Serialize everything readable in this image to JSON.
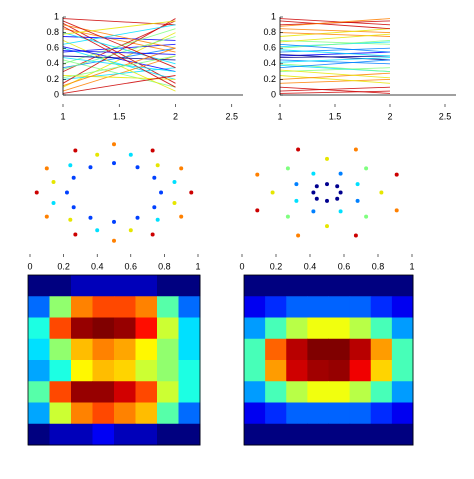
{
  "chart_data": [
    {
      "type": "line",
      "x": [
        1,
        2
      ],
      "xlim": [
        1,
        2.6
      ],
      "ylim": [
        0,
        1
      ],
      "xticks": [
        1,
        1.5,
        2,
        2.5
      ],
      "yticks": [
        0,
        0.2,
        0.4,
        0.6,
        0.8,
        1
      ],
      "series": [
        {
          "color": "#cc0000",
          "values": [
            0.92,
            0.15
          ]
        },
        {
          "color": "#ff8000",
          "values": [
            0.85,
            0.55
          ]
        },
        {
          "color": "#e6e600",
          "values": [
            0.1,
            0.8
          ]
        },
        {
          "color": "#cc0000",
          "values": [
            0.3,
            0.95
          ]
        },
        {
          "color": "#00e0ff",
          "values": [
            0.6,
            0.2
          ]
        },
        {
          "color": "#ff8000",
          "values": [
            0.05,
            0.5
          ]
        },
        {
          "color": "#0000ff",
          "values": [
            0.75,
            0.7
          ]
        },
        {
          "color": "#7fff7f",
          "values": [
            0.45,
            0.1
          ]
        },
        {
          "color": "#00e0ff",
          "values": [
            0.2,
            0.35
          ]
        },
        {
          "color": "#cc0000",
          "values": [
            0.98,
            0.9
          ]
        },
        {
          "color": "#0000ff",
          "values": [
            0.55,
            0.65
          ]
        },
        {
          "color": "#0080ff",
          "values": [
            0.35,
            0.6
          ]
        },
        {
          "color": "#e6e600",
          "values": [
            0.7,
            0.05
          ]
        },
        {
          "color": "#cc0000",
          "values": [
            0.15,
            0.98
          ]
        },
        {
          "color": "#00e0ff",
          "values": [
            0.8,
            0.4
          ]
        },
        {
          "color": "#7fff7f",
          "values": [
            0.4,
            0.85
          ]
        },
        {
          "color": "#0000ff",
          "values": [
            0.62,
            0.3
          ]
        },
        {
          "color": "#e6e600",
          "values": [
            0.25,
            0.2
          ]
        },
        {
          "color": "#ff8000",
          "values": [
            0.9,
            0.6
          ]
        },
        {
          "color": "#00008f",
          "values": [
            0.5,
            0.45
          ]
        },
        {
          "color": "#cc0000",
          "values": [
            0.02,
            0.25
          ]
        },
        {
          "color": "#00e0ff",
          "values": [
            0.65,
            0.9
          ]
        },
        {
          "color": "#7fff7f",
          "values": [
            0.33,
            0.75
          ]
        },
        {
          "color": "#cc0000",
          "values": [
            0.88,
            0.1
          ]
        },
        {
          "color": "#ff8000",
          "values": [
            0.12,
            0.6
          ]
        },
        {
          "color": "#0000ff",
          "values": [
            0.57,
            0.52
          ]
        },
        {
          "color": "#00e0ff",
          "values": [
            0.48,
            0.3
          ]
        },
        {
          "color": "#e6e600",
          "values": [
            0.78,
            0.95
          ]
        },
        {
          "color": "#7fff7f",
          "values": [
            0.22,
            0.5
          ]
        },
        {
          "color": "#cc0000",
          "values": [
            0.95,
            0.35
          ]
        }
      ]
    },
    {
      "type": "line",
      "x": [
        1,
        2
      ],
      "xlim": [
        1,
        2.6
      ],
      "ylim": [
        0,
        1
      ],
      "xticks": [
        1,
        1.5,
        2,
        2.5
      ],
      "yticks": [
        0,
        0.2,
        0.4,
        0.6,
        0.8,
        1
      ],
      "series": [
        {
          "color": "#cc0000",
          "values": [
            0.9,
            0.95
          ]
        },
        {
          "color": "#cc0000",
          "values": [
            0.05,
            0.1
          ]
        },
        {
          "color": "#ff8000",
          "values": [
            0.85,
            0.8
          ]
        },
        {
          "color": "#ff8000",
          "values": [
            0.15,
            0.2
          ]
        },
        {
          "color": "#e6e600",
          "values": [
            0.75,
            0.85
          ]
        },
        {
          "color": "#e6e600",
          "values": [
            0.25,
            0.15
          ]
        },
        {
          "color": "#7fff7f",
          "values": [
            0.7,
            0.65
          ]
        },
        {
          "color": "#7fff7f",
          "values": [
            0.3,
            0.35
          ]
        },
        {
          "color": "#00e0ff",
          "values": [
            0.62,
            0.68
          ]
        },
        {
          "color": "#00e0ff",
          "values": [
            0.38,
            0.3
          ]
        },
        {
          "color": "#0080ff",
          "values": [
            0.55,
            0.6
          ]
        },
        {
          "color": "#0080ff",
          "values": [
            0.45,
            0.4
          ]
        },
        {
          "color": "#0000ff",
          "values": [
            0.5,
            0.55
          ]
        },
        {
          "color": "#00008f",
          "values": [
            0.52,
            0.45
          ]
        },
        {
          "color": "#00008f",
          "values": [
            0.48,
            0.5
          ]
        },
        {
          "color": "#cc0000",
          "values": [
            0.95,
            0.85
          ]
        },
        {
          "color": "#cc0000",
          "values": [
            0.02,
            0.05
          ]
        },
        {
          "color": "#ff8000",
          "values": [
            0.8,
            0.75
          ]
        },
        {
          "color": "#ff8000",
          "values": [
            0.2,
            0.28
          ]
        },
        {
          "color": "#e6e600",
          "values": [
            0.68,
            0.78
          ]
        },
        {
          "color": "#e6e600",
          "values": [
            0.32,
            0.22
          ]
        },
        {
          "color": "#7fff7f",
          "values": [
            0.6,
            0.7
          ]
        },
        {
          "color": "#7fff7f",
          "values": [
            0.4,
            0.3
          ]
        },
        {
          "color": "#00e0ff",
          "values": [
            0.58,
            0.5
          ]
        },
        {
          "color": "#00e0ff",
          "values": [
            0.42,
            0.48
          ]
        },
        {
          "color": "#0080ff",
          "values": [
            0.65,
            0.55
          ]
        },
        {
          "color": "#0080ff",
          "values": [
            0.35,
            0.45
          ]
        },
        {
          "color": "#cc0000",
          "values": [
            0.98,
            0.9
          ]
        },
        {
          "color": "#cc0000",
          "values": [
            0.1,
            0.02
          ]
        },
        {
          "color": "#ff8000",
          "values": [
            0.88,
            0.98
          ]
        }
      ]
    },
    {
      "type": "scatter",
      "xlim": [
        0,
        1
      ],
      "ylim": [
        0,
        1
      ],
      "xticks": [
        0,
        0.2,
        0.4,
        0.6,
        0.8,
        1
      ],
      "x": [
        0.78,
        0.74,
        0.64,
        0.5,
        0.36,
        0.26,
        0.22,
        0.26,
        0.36,
        0.5,
        0.64,
        0.74,
        0.86,
        0.76,
        0.6,
        0.4,
        0.24,
        0.14,
        0.14,
        0.24,
        0.4,
        0.6,
        0.76,
        0.86,
        0.96,
        0.9,
        0.73,
        0.5,
        0.27,
        0.1,
        0.04,
        0.1,
        0.27,
        0.5,
        0.73,
        0.9
      ],
      "values": [
        0.5,
        0.64,
        0.74,
        0.78,
        0.74,
        0.64,
        0.5,
        0.36,
        0.26,
        0.22,
        0.26,
        0.36,
        0.6,
        0.76,
        0.86,
        0.86,
        0.76,
        0.6,
        0.4,
        0.24,
        0.14,
        0.14,
        0.24,
        0.4,
        0.5,
        0.73,
        0.9,
        0.96,
        0.9,
        0.73,
        0.5,
        0.27,
        0.1,
        0.04,
        0.1,
        0.27
      ],
      "colors": [
        "#0040ff",
        "#0040ff",
        "#0040ff",
        "#0040ff",
        "#0040ff",
        "#0040ff",
        "#0040ff",
        "#0040ff",
        "#0040ff",
        "#0040ff",
        "#0040ff",
        "#0040ff",
        "#00e0ff",
        "#e6e600",
        "#00e0ff",
        "#e6e600",
        "#00e0ff",
        "#e6e600",
        "#00e0ff",
        "#e6e600",
        "#00e0ff",
        "#e6e600",
        "#00e0ff",
        "#e6e600",
        "#cc0000",
        "#ff8000",
        "#cc0000",
        "#ff8000",
        "#cc0000",
        "#ff8000",
        "#cc0000",
        "#ff8000",
        "#cc0000",
        "#ff8000",
        "#cc0000",
        "#ff8000"
      ]
    },
    {
      "type": "scatter",
      "xlim": [
        0,
        1
      ],
      "ylim": [
        0,
        1
      ],
      "xticks": [
        0,
        0.2,
        0.4,
        0.6,
        0.8,
        1
      ],
      "x": [
        0.58,
        0.56,
        0.5,
        0.44,
        0.42,
        0.44,
        0.5,
        0.56,
        0.68,
        0.58,
        0.42,
        0.32,
        0.32,
        0.42,
        0.58,
        0.68,
        0.82,
        0.73,
        0.5,
        0.27,
        0.18,
        0.27,
        0.5,
        0.73,
        0.91,
        0.67,
        0.33,
        0.09,
        0.09,
        0.33,
        0.67,
        0.91
      ],
      "values": [
        0.5,
        0.56,
        0.58,
        0.56,
        0.5,
        0.44,
        0.42,
        0.44,
        0.58,
        0.68,
        0.68,
        0.58,
        0.42,
        0.32,
        0.32,
        0.42,
        0.5,
        0.73,
        0.82,
        0.73,
        0.5,
        0.27,
        0.18,
        0.27,
        0.67,
        0.91,
        0.91,
        0.67,
        0.33,
        0.09,
        0.09,
        0.33
      ],
      "colors": [
        "#00008f",
        "#00008f",
        "#00008f",
        "#00008f",
        "#00008f",
        "#00008f",
        "#00008f",
        "#00008f",
        "#00e0ff",
        "#0080ff",
        "#00e0ff",
        "#0080ff",
        "#00e0ff",
        "#0080ff",
        "#00e0ff",
        "#0080ff",
        "#e6e600",
        "#7fff7f",
        "#e6e600",
        "#7fff7f",
        "#e6e600",
        "#7fff7f",
        "#e6e600",
        "#7fff7f",
        "#cc0000",
        "#ff8000",
        "#cc0000",
        "#ff8000",
        "#cc0000",
        "#ff8000",
        "#cc0000",
        "#ff8000"
      ]
    },
    {
      "type": "contour",
      "colormap": "jet",
      "z": [
        [
          0.1,
          0.1,
          0.15,
          0.15,
          0.15,
          0.15,
          0.1,
          0.1
        ],
        [
          0.3,
          0.55,
          0.75,
          0.8,
          0.8,
          0.75,
          0.5,
          0.3
        ],
        [
          0.45,
          0.8,
          0.95,
          0.97,
          0.95,
          0.85,
          0.6,
          0.4
        ],
        [
          0.4,
          0.55,
          0.7,
          0.75,
          0.72,
          0.65,
          0.55,
          0.4
        ],
        [
          0.35,
          0.45,
          0.65,
          0.7,
          0.68,
          0.6,
          0.55,
          0.45
        ],
        [
          0.5,
          0.8,
          0.95,
          0.95,
          0.9,
          0.8,
          0.6,
          0.45
        ],
        [
          0.35,
          0.6,
          0.75,
          0.8,
          0.75,
          0.7,
          0.5,
          0.3
        ],
        [
          0.1,
          0.15,
          0.15,
          0.2,
          0.15,
          0.15,
          0.1,
          0.1
        ]
      ]
    },
    {
      "type": "contour",
      "colormap": "jet",
      "z": [
        [
          0.05,
          0.05,
          0.05,
          0.05,
          0.05,
          0.05,
          0.05,
          0.05
        ],
        [
          0.15,
          0.2,
          0.25,
          0.25,
          0.25,
          0.25,
          0.2,
          0.15
        ],
        [
          0.3,
          0.45,
          0.55,
          0.6,
          0.6,
          0.55,
          0.45,
          0.3
        ],
        [
          0.45,
          0.75,
          0.9,
          0.95,
          0.95,
          0.9,
          0.7,
          0.45
        ],
        [
          0.45,
          0.7,
          0.88,
          0.92,
          0.93,
          0.85,
          0.65,
          0.45
        ],
        [
          0.3,
          0.45,
          0.55,
          0.6,
          0.6,
          0.55,
          0.45,
          0.3
        ],
        [
          0.15,
          0.2,
          0.25,
          0.25,
          0.25,
          0.25,
          0.2,
          0.15
        ],
        [
          0.05,
          0.05,
          0.05,
          0.05,
          0.05,
          0.05,
          0.05,
          0.05
        ]
      ]
    }
  ]
}
